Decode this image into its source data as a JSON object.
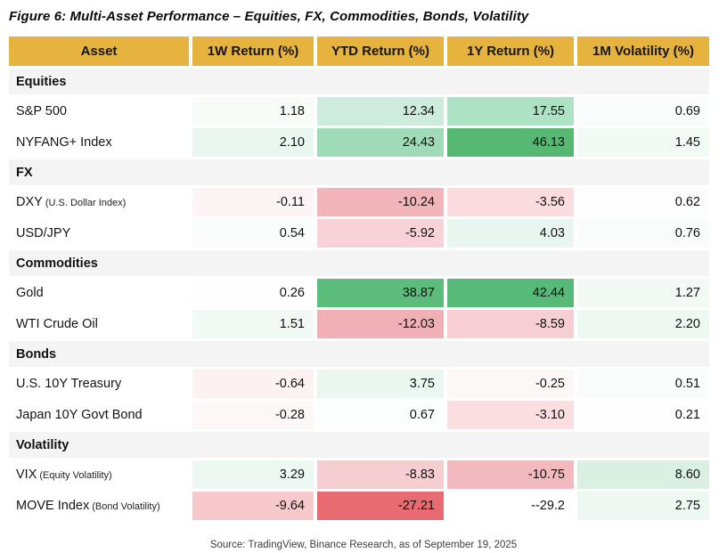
{
  "title": "Figure 6: Multi-Asset Performance – Equities, FX, Commodities, Bonds, Volatility",
  "source": "Source: TradingView, Binance Research, as of September 19, 2025",
  "colors": {
    "header_bg": "#e5b33e",
    "section_bg": "#f4f4f4",
    "strong_positive": "#56b873",
    "strong_negative": "#e76b70",
    "text": "#111111"
  },
  "chart_data": {
    "type": "table",
    "title": "Figure 6: Multi-Asset Performance – Equities, FX, Commodities, Bonds, Volatility",
    "columns": [
      "Asset",
      "1W Return (%)",
      "YTD Return (%)",
      "1Y Return (%)",
      "1M Volatility (%)"
    ],
    "legend_note": "cells shaded green for positive and red for negative magnitude",
    "sections": [
      {
        "label": "Equities",
        "rows": [
          {
            "asset": "S&P 500",
            "note": "",
            "values": [
              "1.18",
              "12.34",
              "17.55",
              "0.69"
            ],
            "cell_colors": [
              "#f7fcf9",
              "#cdecdb",
              "#aee2c4",
              "#fbfdfc"
            ]
          },
          {
            "asset": "NYFANG+ Index",
            "note": "",
            "values": [
              "2.10",
              "24.43",
              "46.13",
              "1.45"
            ],
            "cell_colors": [
              "#eaf7f0",
              "#9fdbb9",
              "#56b873",
              "#f2faf5"
            ]
          }
        ]
      },
      {
        "label": "FX",
        "rows": [
          {
            "asset": "DXY",
            "note": "(U.S. Dollar Index)",
            "values": [
              "-0.11",
              "-10.24",
              "-3.56",
              "0.62"
            ],
            "cell_colors": [
              "#fdf5f5",
              "#f1b5ba",
              "#fbdcdf",
              "#fcfdfc"
            ]
          },
          {
            "asset": "USD/JPY",
            "note": "",
            "values": [
              "0.54",
              "-5.92",
              "4.03",
              "0.76"
            ],
            "cell_colors": [
              "#fbfdfc",
              "#f7d2d6",
              "#e9f6ef",
              "#fafcfb"
            ]
          }
        ]
      },
      {
        "label": "Commodities",
        "rows": [
          {
            "asset": "Gold",
            "note": "",
            "values": [
              "0.26",
              "38.87",
              "42.44",
              "1.27"
            ],
            "cell_colors": [
              "#fdfefd",
              "#5cbc7c",
              "#58ba78",
              "#f3faf6"
            ]
          },
          {
            "asset": "WTI Crude Oil",
            "note": "",
            "values": [
              "1.51",
              "-12.03",
              "-8.59",
              "2.20"
            ],
            "cell_colors": [
              "#f1faf5",
              "#f0b0b6",
              "#f7ced2",
              "#edf8f2"
            ]
          }
        ]
      },
      {
        "label": "Bonds",
        "rows": [
          {
            "asset": "U.S. 10Y Treasury",
            "note": "",
            "values": [
              "-0.64",
              "3.75",
              "-0.25",
              "0.51"
            ],
            "cell_colors": [
              "#fdf2f2",
              "#eaf7f0",
              "#fdf8f8",
              "#fbfdfc"
            ]
          },
          {
            "asset": "Japan 10Y Govt Bond",
            "note": "",
            "values": [
              "-0.28",
              "0.67",
              "-3.10",
              "0.21"
            ],
            "cell_colors": [
              "#fdf7f7",
              "#fcfefd",
              "#fbdee0",
              "#fdfefd"
            ]
          }
        ]
      },
      {
        "label": "Volatility",
        "rows": [
          {
            "asset": "VIX",
            "note": "(Equity Volatility)",
            "values": [
              "3.29",
              "-8.83",
              "-10.75",
              "8.60"
            ],
            "cell_colors": [
              "#ecf8f1",
              "#f6ced2",
              "#f2b9bf",
              "#d9f0e3"
            ]
          },
          {
            "asset": "MOVE Index",
            "note": "(Bond Volatility)",
            "values": [
              "-9.64",
              "-27.21",
              "--29.2",
              "2.75"
            ],
            "cell_colors": [
              "#f6c9cd",
              "#e76b70",
              "#ffffff",
              "#edf8f2"
            ]
          }
        ]
      }
    ]
  }
}
